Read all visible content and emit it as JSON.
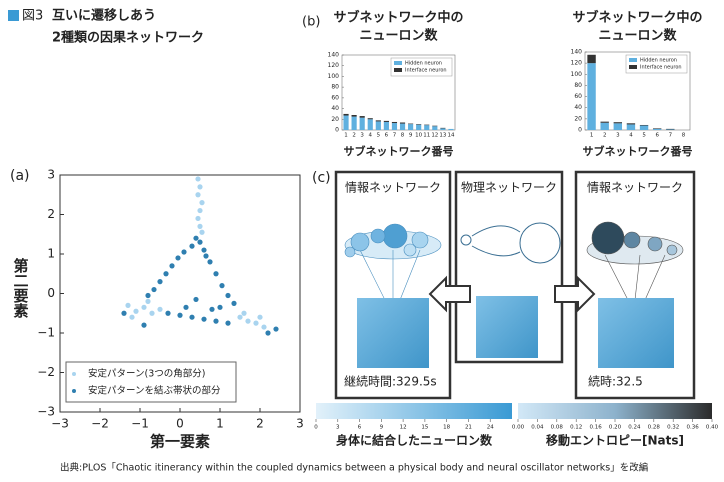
{
  "header": {
    "figure": "図3",
    "title_lines": [
      "互いに遷移しあう",
      "2種類の因果ネットワーク"
    ]
  },
  "chart_data": [
    {
      "type": "scatter",
      "panel": "(a)",
      "x_label": "第一要素",
      "y_label": "第二要素",
      "xlim": [
        -3,
        3
      ],
      "ylim": [
        -3,
        3
      ],
      "xticks": [
        {
          "value": -3,
          "label": "−3"
        },
        {
          "value": -2,
          "label": "−2"
        },
        {
          "value": -1,
          "label": "−1"
        },
        0,
        1,
        2,
        3
      ],
      "yticks": [
        {
          "value": -3,
          "label": "−3"
        },
        {
          "value": -2,
          "label": "−2"
        },
        {
          "value": -1,
          "label": "−1"
        },
        0,
        1,
        2,
        3
      ],
      "series": [
        {
          "name": "安定パターン(3つの角部分)",
          "color": "#a9d4ef",
          "x": [
            0.45,
            0.5,
            0.45,
            0.55,
            0.5,
            0.45,
            0.5,
            0.55,
            -1.3,
            -1.1,
            -0.9,
            -0.7,
            -1.2,
            -0.8,
            -0.5,
            1.5,
            1.7,
            1.9,
            2.1,
            1.6,
            2.0
          ],
          "y": [
            2.9,
            2.7,
            2.5,
            2.3,
            2.1,
            1.9,
            1.7,
            1.55,
            -0.3,
            -0.45,
            -0.35,
            -0.5,
            -0.6,
            -0.2,
            -0.4,
            -0.6,
            -0.7,
            -0.75,
            -0.85,
            -0.5,
            -0.6
          ]
        },
        {
          "name": "安定パターンを結ぶ帯状の部分",
          "color": "#2f7fb0",
          "x": [
            0.4,
            0.3,
            0.1,
            -0.05,
            -0.2,
            -0.35,
            -0.5,
            -0.65,
            -0.8,
            0.5,
            0.6,
            0.75,
            0.9,
            1.05,
            1.2,
            1.35,
            0.65,
            -0.3,
            0,
            0.3,
            0.6,
            0.9,
            1.2,
            0.15,
            0.8,
            2.2,
            2.4,
            -1.4,
            -0.9,
            0.4,
            1.0
          ],
          "y": [
            1.4,
            1.2,
            1.05,
            0.9,
            0.7,
            0.5,
            0.3,
            0.1,
            -0.05,
            1.3,
            1.1,
            0.8,
            0.5,
            0.2,
            -0.05,
            -0.25,
            0.95,
            -0.5,
            -0.55,
            -0.6,
            -0.65,
            -0.7,
            -0.75,
            -0.35,
            -0.4,
            -1.0,
            -0.9,
            -0.5,
            -0.8,
            -0.15,
            -0.35
          ]
        }
      ]
    },
    {
      "type": "bar",
      "panel": "(b)",
      "title": [
        "サブネットワーク中の",
        "ニューロン数"
      ],
      "x_label": "サブネットワーク番号",
      "categories": [
        "1",
        "2",
        "3",
        "4",
        "5",
        "6",
        "7",
        "8",
        "9",
        "10",
        "11",
        "12",
        "13",
        "14"
      ],
      "ylim": [
        0,
        140
      ],
      "yticks": [
        0,
        20,
        40,
        60,
        80,
        100,
        120,
        140
      ],
      "legend": "upper right",
      "series": [
        {
          "name": "Hidden neuron",
          "color": "#5fb0df",
          "values": [
            27,
            25,
            23,
            20,
            16,
            15,
            13,
            12,
            11,
            10,
            9,
            7,
            3,
            2
          ]
        },
        {
          "name": "Interface neuron",
          "color": "#333333",
          "values": [
            3,
            3,
            3,
            2,
            2,
            2,
            2,
            2,
            1,
            1,
            1,
            1,
            1,
            0
          ]
        }
      ]
    },
    {
      "type": "bar",
      "title": [
        "サブネットワーク中の",
        "ニューロン数"
      ],
      "x_label": "サブネットワーク番号",
      "categories": [
        "1",
        "2",
        "3",
        "4",
        "5",
        "6",
        "7",
        "8"
      ],
      "ylim": [
        0,
        140
      ],
      "yticks": [
        0,
        20,
        40,
        60,
        80,
        100,
        120,
        140
      ],
      "legend": "upper right",
      "series": [
        {
          "name": "Hidden neuron",
          "color": "#5fb0df",
          "values": [
            120,
            13,
            12,
            10,
            8,
            2,
            1,
            0
          ]
        },
        {
          "name": "Interface neuron",
          "color": "#333333",
          "values": [
            15,
            2,
            2,
            2,
            1,
            1,
            1,
            0
          ]
        }
      ]
    }
  ],
  "panel_c": {
    "label": "(c)",
    "boxes": [
      {
        "title": "情報ネットワーク",
        "duration": "継続時間:329.5s"
      },
      {
        "title": "物理ネットワーク"
      },
      {
        "title": "情報ネットワーク",
        "duration": "続時:32.5"
      }
    ],
    "colorbars": [
      {
        "label": "身体に結合したニューロン数",
        "lim": [
          0,
          27
        ],
        "ticks": [
          0,
          3,
          6,
          9,
          12,
          15,
          18,
          21,
          24
        ]
      },
      {
        "label": "移動エントロピー[Nats]",
        "lim": [
          0,
          0.4
        ],
        "ticks": [
          {
            "value": 0,
            "label": "0.00"
          },
          0.04,
          0.08,
          0.12,
          0.16,
          {
            "value": 0.2,
            "label": "0.20"
          },
          0.24,
          0.28,
          0.32,
          0.36,
          {
            "value": 0.4,
            "label": "0.40"
          }
        ]
      }
    ]
  },
  "source": "出典:PLOS「Chaotic itinerancy within the coupled dynamics between a physical body and neural oscillator networks」を改編"
}
